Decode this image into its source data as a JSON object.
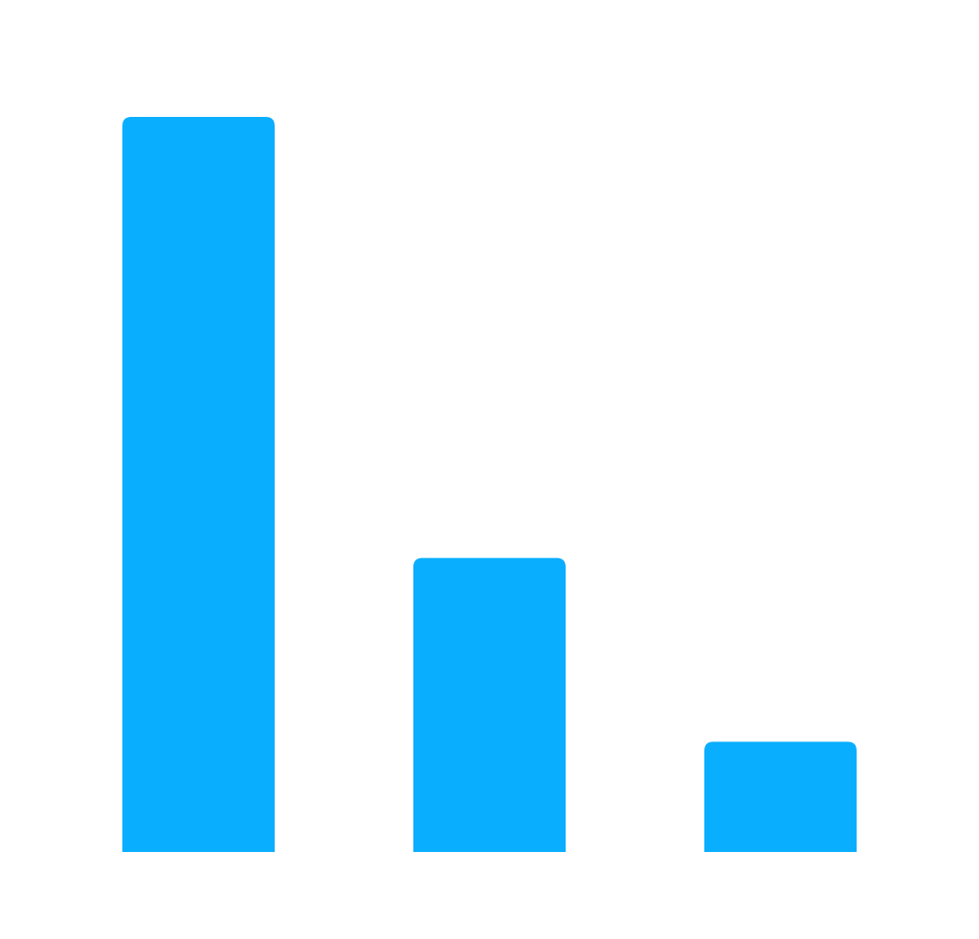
{
  "chart_data": {
    "type": "bar",
    "categories": [
      "",
      "",
      ""
    ],
    "values": [
      100,
      40,
      15
    ],
    "ylim": [
      0,
      100
    ],
    "grid": false,
    "legend": "none",
    "title": "",
    "xlabel": "",
    "ylabel": "",
    "colors": {
      "bar": "#0aaeff",
      "background": "#ffffff"
    }
  }
}
